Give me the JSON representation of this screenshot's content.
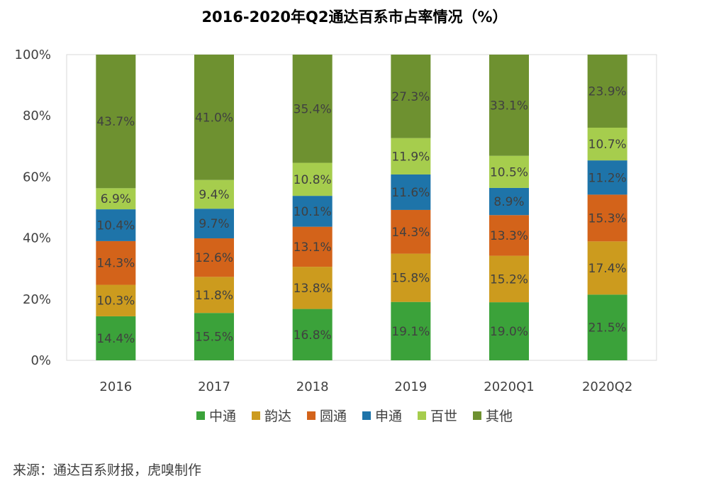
{
  "title": "2016-2020年Q2通达百系市占率情况（%）",
  "source": "来源：通达百系财报，虎嗅制作",
  "chart_data": {
    "type": "bar",
    "stacked": true,
    "title": "2016-2020年Q2通达百系市占率情况（%）",
    "categories": [
      "2016",
      "2017",
      "2018",
      "2019",
      "2020Q1",
      "2020Q2"
    ],
    "ylim": [
      0,
      100
    ],
    "yticks": [
      "0%",
      "20%",
      "40%",
      "60%",
      "80%",
      "100%"
    ],
    "legend_position": "bottom",
    "series": [
      {
        "name": "中通",
        "color": "#3BA23A",
        "values": [
          14.4,
          15.5,
          16.8,
          19.1,
          19.0,
          21.5
        ],
        "labels": [
          "14.4%",
          "15.5%",
          "16.8%",
          "19.1%",
          "19.0%",
          "21.5%"
        ]
      },
      {
        "name": "韵达",
        "color": "#CC9B1E",
        "values": [
          10.3,
          11.8,
          13.8,
          15.8,
          15.2,
          17.4
        ],
        "labels": [
          "10.3%",
          "11.8%",
          "13.8%",
          "15.8%",
          "15.2%",
          "17.4%"
        ]
      },
      {
        "name": "圆通",
        "color": "#D3631A",
        "values": [
          14.3,
          12.6,
          13.1,
          14.3,
          13.3,
          15.3
        ],
        "labels": [
          "14.3%",
          "12.6%",
          "13.1%",
          "14.3%",
          "13.3%",
          "15.3%"
        ]
      },
      {
        "name": "申通",
        "color": "#1E74A9",
        "values": [
          10.4,
          9.7,
          10.1,
          11.6,
          8.9,
          11.2
        ],
        "labels": [
          "10.4%",
          "9.7%",
          "10.1%",
          "11.6%",
          "8.9%",
          "11.2%"
        ]
      },
      {
        "name": "百世",
        "color": "#A6CD4D",
        "values": [
          6.9,
          9.4,
          10.8,
          11.9,
          10.5,
          10.7
        ],
        "labels": [
          "6.9%",
          "9.4%",
          "10.8%",
          "11.9%",
          "10.5%",
          "10.7%"
        ]
      },
      {
        "name": "其他",
        "color": "#6E9130",
        "values": [
          43.7,
          41.0,
          35.4,
          27.3,
          33.1,
          23.9
        ],
        "labels": [
          "43.7%",
          "41.0%",
          "35.4%",
          "27.3%",
          "33.1%",
          "23.9%"
        ]
      }
    ]
  }
}
